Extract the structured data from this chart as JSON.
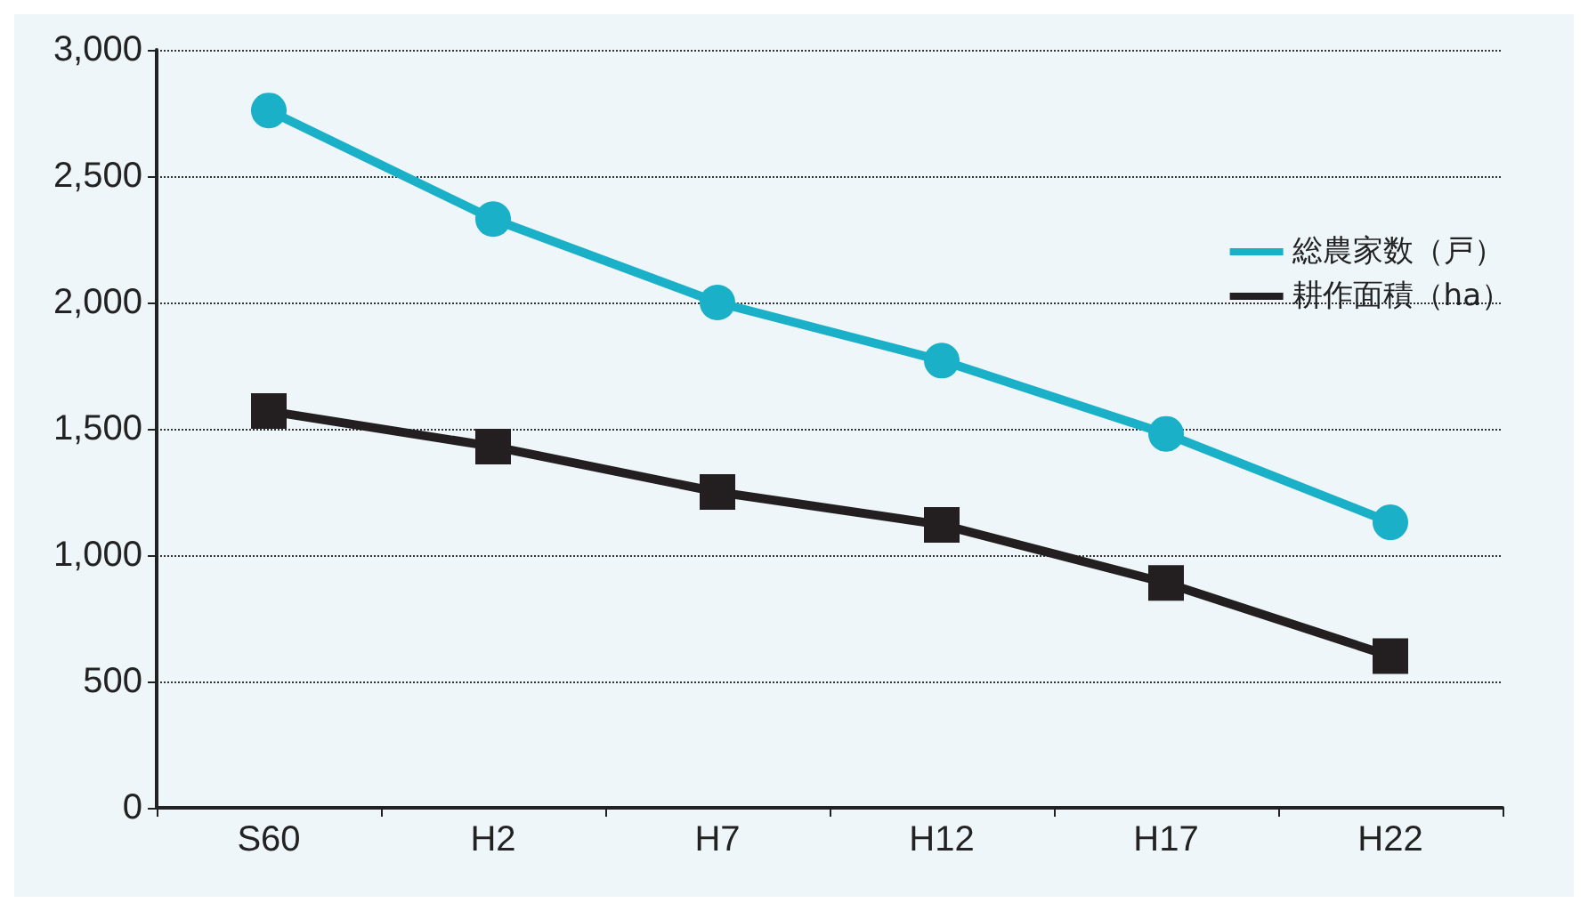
{
  "chart_data": {
    "type": "line",
    "categories": [
      "S60",
      "H2",
      "H7",
      "H12",
      "H17",
      "H22"
    ],
    "series": [
      {
        "name": "総農家数（戸）",
        "color": "#1ab0c8",
        "marker": "circle",
        "values": [
          2760,
          2330,
          2000,
          1770,
          1480,
          1130
        ]
      },
      {
        "name": "耕作面積（ha）",
        "color": "#231f20",
        "marker": "square",
        "values": [
          1570,
          1430,
          1250,
          1120,
          890,
          600
        ]
      }
    ],
    "ylim": [
      0,
      3000
    ],
    "yticks": [
      0,
      {
        "value": 500,
        "label": "500"
      },
      {
        "value": 1000,
        "label": "1,000"
      },
      {
        "value": 1500,
        "label": "1,500"
      },
      {
        "value": 2000,
        "label": "2,000"
      },
      {
        "value": 2500,
        "label": "2,500"
      },
      {
        "value": 3000,
        "label": "3,000"
      }
    ],
    "grid": "y",
    "legend": "right",
    "line_style": "solid"
  }
}
